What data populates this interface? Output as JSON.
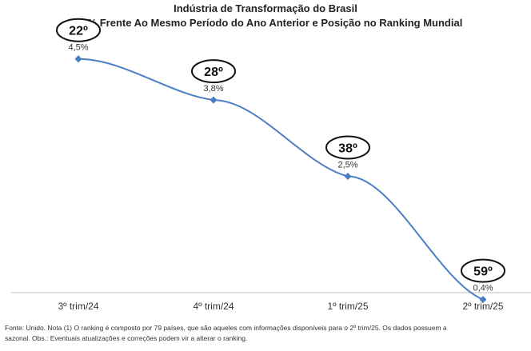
{
  "chart_data": {
    "type": "line",
    "title": "Indústria de Transformação do Brasil",
    "subtitle": "Var % Frente Ao Mesmo Período do Ano Anterior e Posição no Ranking Mundial",
    "categories": [
      "3º trim/24",
      "4º trim/24",
      "1º trim/25",
      "2º trim/25"
    ],
    "series": [
      {
        "values": [
          4.5,
          3.8,
          2.5,
          0.4
        ],
        "value_labels": [
          "4,5%",
          "3,8%",
          "2,5%",
          "0,4%"
        ],
        "rank_labels": [
          "22º",
          "28º",
          "38º",
          "59º"
        ],
        "color": "#4a7fc4"
      }
    ],
    "ylim": [
      0,
      5
    ],
    "grid": false,
    "legend": "none",
    "xlabel": "",
    "ylabel": ""
  },
  "footnote": {
    "line1": "Fonte: Unido. Nota (1) O ranking é composto por 79 países, que são aqueles com informações disponíveis para o 2º trim/25. Os dados possuem a",
    "line2": "sazonal. Obs.: Eventuais atualizações e correções podem vir a alterar o ranking."
  },
  "colors": {
    "line": "#4a7fc4",
    "axis": "#bfbfbf",
    "text": "#333333"
  }
}
